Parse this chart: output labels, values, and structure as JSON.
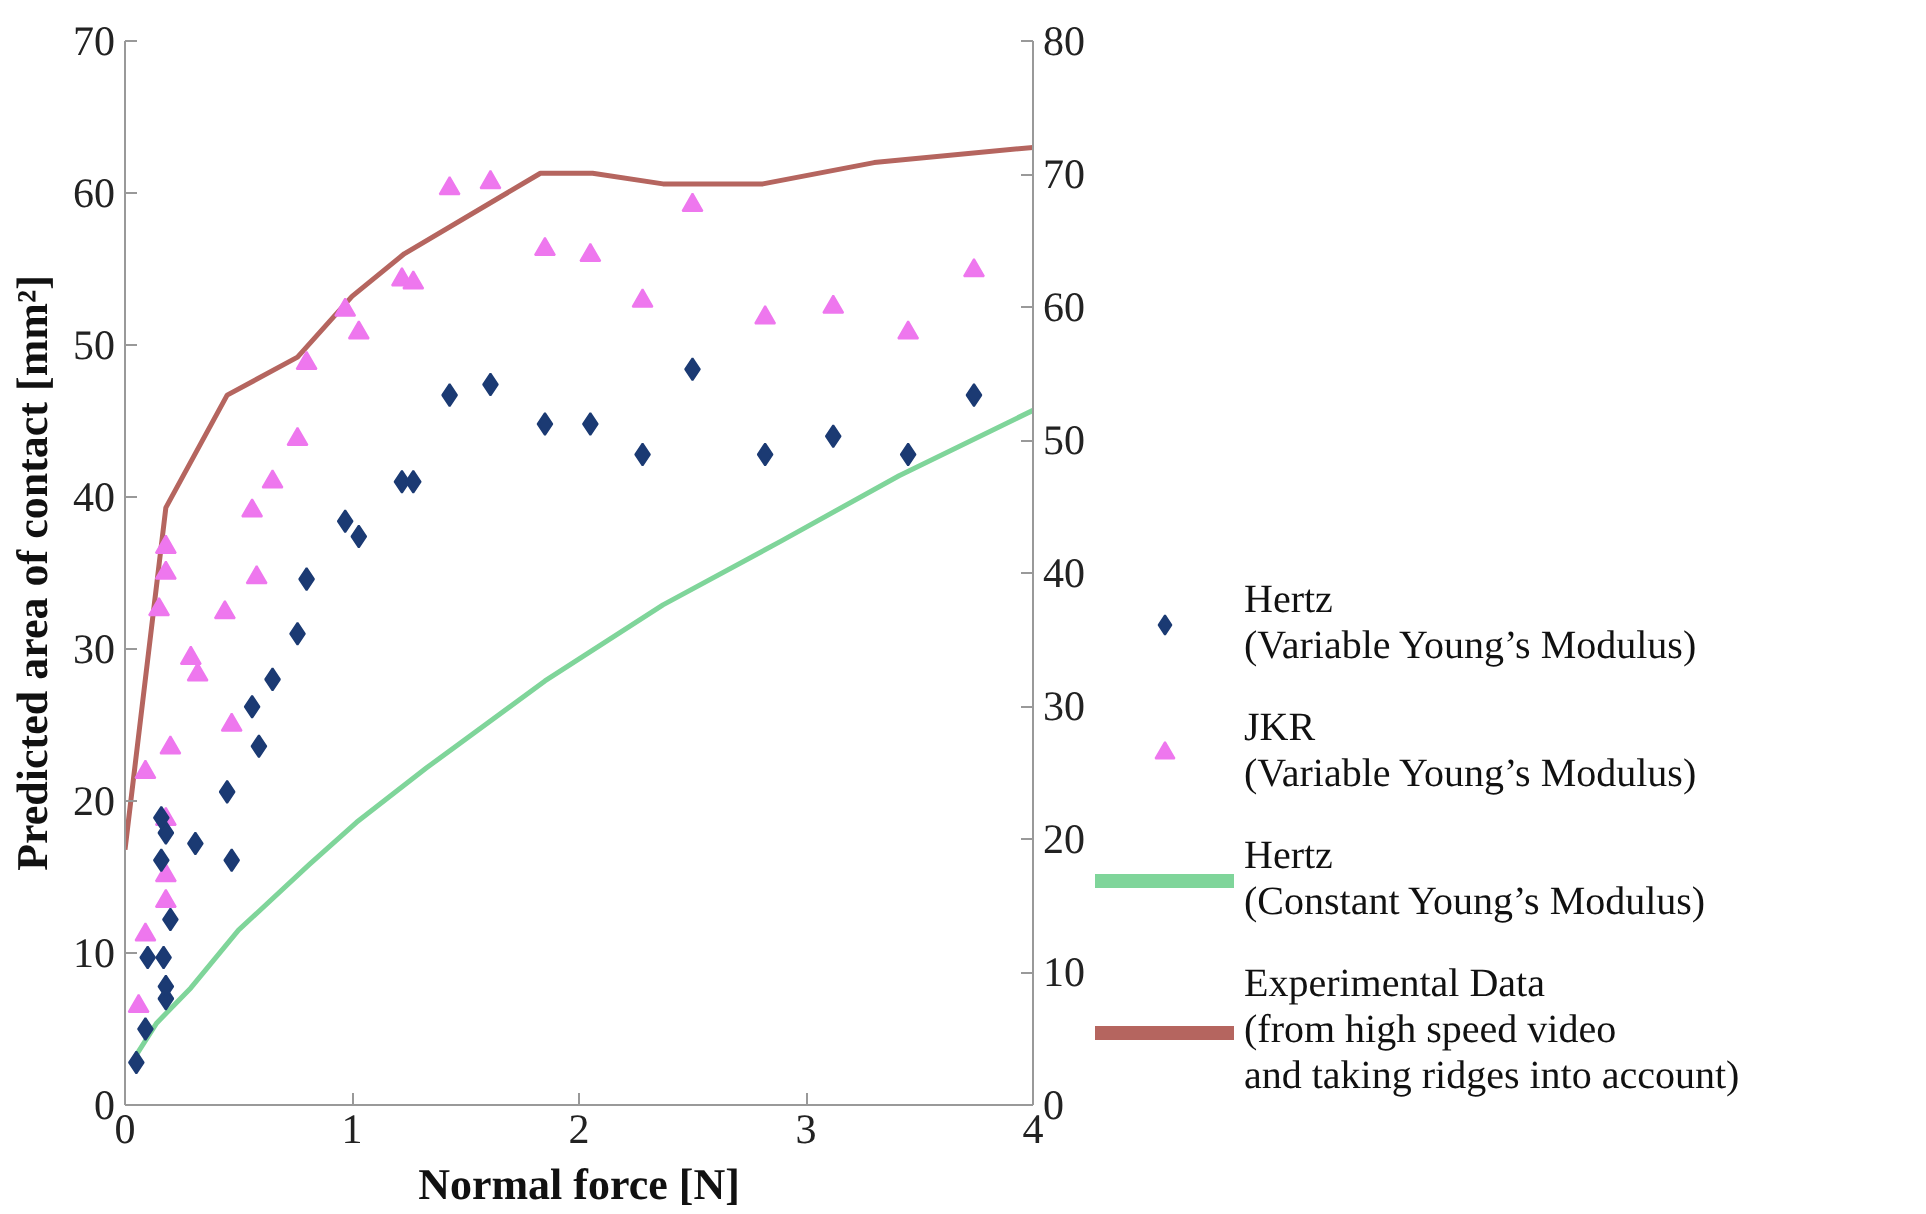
{
  "chart_data": {
    "type": "scatter",
    "xlabel": "Normal force [N]",
    "ylabel": "Predicted area of contact [mm²]",
    "xlim": [
      0,
      4
    ],
    "xticks": [
      0,
      1,
      2,
      3,
      4
    ],
    "ylim": [
      0,
      70
    ],
    "yticks": [
      0,
      10,
      20,
      30,
      40,
      50,
      60,
      70
    ],
    "y2lim": [
      0,
      80
    ],
    "y2ticks": [
      0,
      10,
      20,
      30,
      40,
      50,
      60,
      70,
      80
    ],
    "grid": false,
    "legend": "right",
    "series": [
      {
        "name": "Hertz\n(Variable Young’s Modulus)",
        "marker": "diamond",
        "color": "#1b3a73",
        "x": [
          0.05,
          0.09,
          0.1,
          0.17,
          0.18,
          0.18,
          0.2,
          0.16,
          0.18,
          0.16,
          0.31,
          0.47,
          0.45,
          0.59,
          0.56,
          0.65,
          0.76,
          0.8,
          0.97,
          1.03,
          1.22,
          1.27,
          1.43,
          1.61,
          1.85,
          2.05,
          2.28,
          2.5,
          2.82,
          3.12,
          3.45,
          3.74
        ],
        "values": [
          2.8,
          5.0,
          9.7,
          9.7,
          7.0,
          7.8,
          12.2,
          16.1,
          17.9,
          18.9,
          17.2,
          16.1,
          20.6,
          23.6,
          26.2,
          28.0,
          31.0,
          34.6,
          38.4,
          37.4,
          41.0,
          41.0,
          46.7,
          47.4,
          44.8,
          44.8,
          42.8,
          48.4,
          42.8,
          44.0,
          42.8,
          46.7
        ]
      },
      {
        "name": "JKR\n(Variable Young’s Modulus)",
        "marker": "triangle",
        "color": "#ee77ee",
        "x": [
          0.06,
          0.09,
          0.18,
          0.18,
          0.18,
          0.2,
          0.09,
          0.47,
          0.29,
          0.32,
          0.44,
          0.58,
          0.15,
          0.18,
          0.18,
          0.56,
          0.65,
          0.76,
          0.8,
          0.97,
          1.03,
          1.22,
          1.27,
          1.43,
          1.61,
          1.85,
          2.05,
          2.28,
          2.5,
          2.82,
          3.12,
          3.45,
          3.74
        ],
        "values": [
          6.5,
          11.2,
          13.4,
          15.1,
          18.8,
          23.5,
          21.9,
          25.0,
          29.4,
          28.3,
          32.4,
          34.7,
          32.6,
          35.0,
          36.7,
          39.1,
          41.0,
          43.8,
          48.8,
          52.3,
          50.8,
          54.3,
          54.1,
          60.3,
          60.7,
          56.3,
          55.9,
          52.9,
          59.2,
          51.8,
          52.5,
          50.8,
          54.9
        ]
      },
      {
        "name": "Hertz\n(Constant Young’s Modulus)",
        "type": "line",
        "color": "#7fd59a",
        "x": [
          0.05,
          0.14,
          0.29,
          0.5,
          0.81,
          1.02,
          1.33,
          1.85,
          2.37,
          2.89,
          3.41,
          4.0
        ],
        "values": [
          3.3,
          5.4,
          7.7,
          11.5,
          15.8,
          18.6,
          22.2,
          27.9,
          32.9,
          37.1,
          41.4,
          45.7
        ]
      },
      {
        "name": "Experimental Data\n(from high speed video\nand taking ridges into account)",
        "type": "line",
        "color": "#b5655f",
        "x": [
          0,
          0.18,
          0.45,
          0.76,
          1.0,
          1.23,
          1.83,
          2.06,
          2.37,
          2.81,
          3.3,
          4.0
        ],
        "values": [
          16.8,
          39.3,
          46.7,
          49.2,
          53.2,
          56.0,
          61.3,
          61.3,
          60.6,
          60.6,
          62.0,
          63.0
        ]
      }
    ]
  }
}
